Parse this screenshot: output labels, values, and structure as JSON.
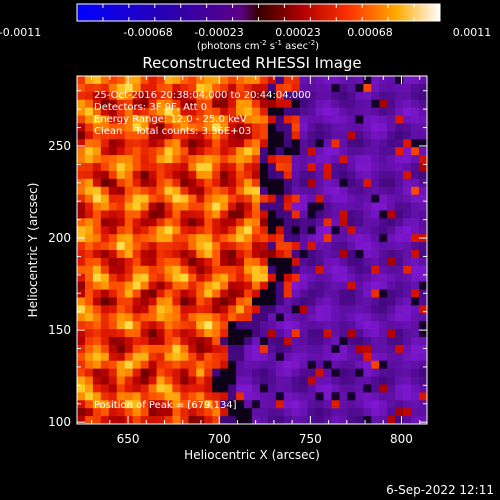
{
  "colorbar": {
    "tick_labels": [
      "-0.0011",
      "-0.00068",
      "-0.00023",
      "0.00023",
      "0.00068",
      "0.0011"
    ],
    "unit_base": "(photons cm",
    "unit_sup1": "-2",
    "unit_mid1": " s",
    "unit_sup2": "-1",
    "unit_mid2": " asec",
    "unit_sup3": "-2",
    "unit_end": ")"
  },
  "annotations": {
    "line1": "25-Oct-2016 20:38:04.000 to 20:44:04.000",
    "line2": "Detectors: 3F 9F, Att 0",
    "line3": "Energy Range: 12.0 - 25.0 keV",
    "line4": "Clean    Total counts: 3.36E+03",
    "peak": "Position of Peak = [679,134]"
  },
  "footer": {
    "timestamp": "6-Sep-2022 12:11"
  },
  "chart_data": {
    "type": "heatmap",
    "title": "Reconstructed RHESSI Image",
    "xlabel": "Heliocentric X (arcsec)",
    "ylabel": "Heliocentric Y (arcsec)",
    "xlim": [
      622,
      814
    ],
    "ylim": [
      99,
      288
    ],
    "x_ticks": [
      650,
      700,
      750,
      800
    ],
    "y_ticks": [
      100,
      150,
      200,
      250
    ],
    "color_range": [
      -0.0011,
      0.0011
    ],
    "colormap": "rainbow-style: blue-purple (negative) to red-orange-yellow-white (positive)",
    "peak_position": [
      679,
      134
    ],
    "legend": "colorbar at top"
  }
}
